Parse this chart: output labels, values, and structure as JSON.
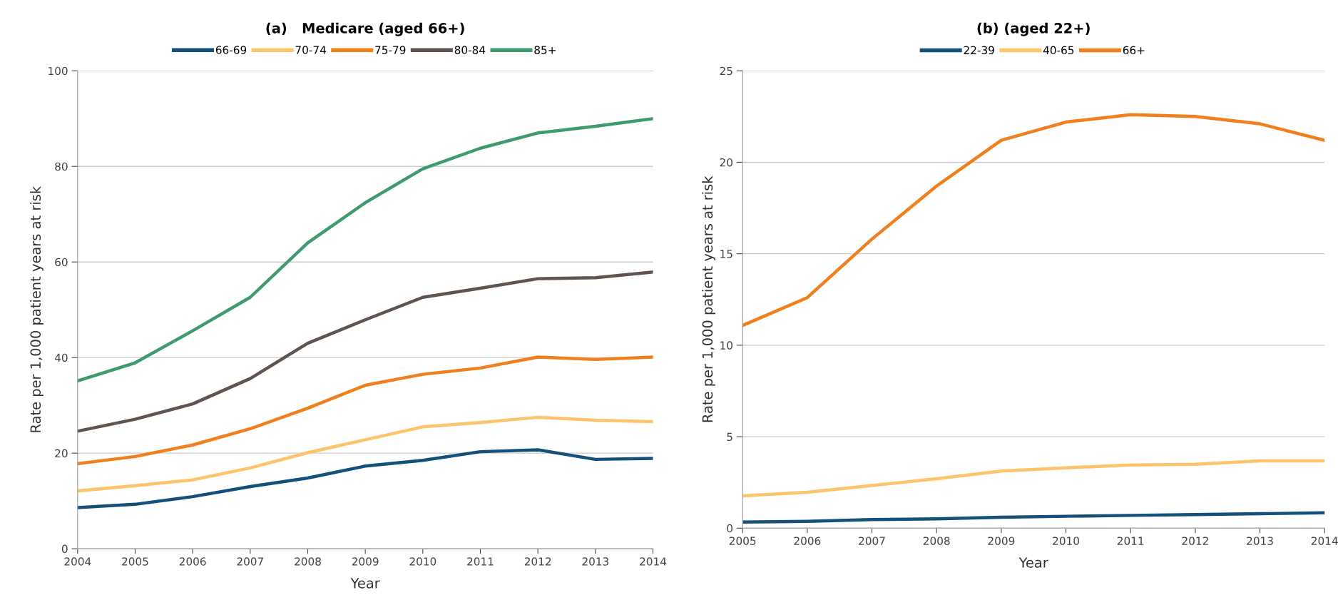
{
  "chart_data": [
    {
      "type": "line",
      "title": "(a)   Medicare (aged 66+)",
      "xlabel": "Year",
      "ylabel": "Rate per 1,000 patient years at risk",
      "x": [
        2004,
        2005,
        2006,
        2007,
        2008,
        2009,
        2010,
        2011,
        2012,
        2013,
        2014
      ],
      "xlim": [
        2004,
        2014
      ],
      "xticks": [
        2004,
        2005,
        2006,
        2007,
        2008,
        2009,
        2010,
        2011,
        2012,
        2013,
        2014
      ],
      "ylim": [
        0,
        100
      ],
      "yticks": [
        0,
        20,
        40,
        60,
        80,
        100
      ],
      "grid": "y",
      "legend": "top",
      "marker": "none",
      "line_style": "solid",
      "series": [
        {
          "name": "66-69",
          "color": "#14507c",
          "values": [
            8.6,
            9.3,
            10.9,
            13.0,
            14.8,
            17.3,
            18.5,
            20.3,
            20.7,
            18.7,
            18.9
          ]
        },
        {
          "name": "70-74",
          "color": "#fdc56b",
          "values": [
            12.1,
            13.2,
            14.4,
            16.9,
            20.1,
            22.8,
            25.5,
            26.4,
            27.5,
            26.9,
            26.6
          ]
        },
        {
          "name": "75-79",
          "color": "#f07f1d",
          "values": [
            17.8,
            19.3,
            21.7,
            25.1,
            29.4,
            34.2,
            36.5,
            37.8,
            40.1,
            39.6,
            40.1
          ]
        },
        {
          "name": "80-84",
          "color": "#5f5450",
          "values": [
            24.6,
            27.1,
            30.3,
            35.6,
            43.0,
            47.9,
            52.6,
            54.5,
            56.5,
            56.7,
            57.9
          ]
        },
        {
          "name": "85+",
          "color": "#3f9b6f",
          "values": [
            35.1,
            38.9,
            45.6,
            52.6,
            64.0,
            72.4,
            79.5,
            83.8,
            87.0,
            88.4,
            90.0
          ]
        }
      ]
    },
    {
      "type": "line",
      "title": "(b) (aged 22+)",
      "xlabel": "Year",
      "ylabel": "Rate per 1,000 patient years at risk",
      "x": [
        2005,
        2006,
        2007,
        2008,
        2009,
        2010,
        2011,
        2012,
        2013,
        2014
      ],
      "xlim": [
        2005,
        2014
      ],
      "xticks": [
        2005,
        2006,
        2007,
        2008,
        2009,
        2010,
        2011,
        2012,
        2013,
        2014
      ],
      "ylim": [
        0,
        25
      ],
      "yticks": [
        0,
        5,
        10,
        15,
        20,
        25
      ],
      "grid": "y",
      "legend": "top",
      "marker": "none",
      "line_style": "solid",
      "series": [
        {
          "name": "22-39",
          "color": "#14507c",
          "values": [
            0.33,
            0.37,
            0.47,
            0.51,
            0.6,
            0.65,
            0.7,
            0.74,
            0.79,
            0.84
          ]
        },
        {
          "name": "40-65",
          "color": "#fdc56b",
          "values": [
            1.77,
            1.96,
            2.33,
            2.7,
            3.12,
            3.3,
            3.45,
            3.49,
            3.68,
            3.68
          ]
        },
        {
          "name": "66+",
          "color": "#f07f1d",
          "values": [
            11.08,
            12.6,
            15.8,
            18.7,
            21.2,
            22.2,
            22.6,
            22.5,
            22.1,
            21.2
          ]
        }
      ]
    }
  ]
}
